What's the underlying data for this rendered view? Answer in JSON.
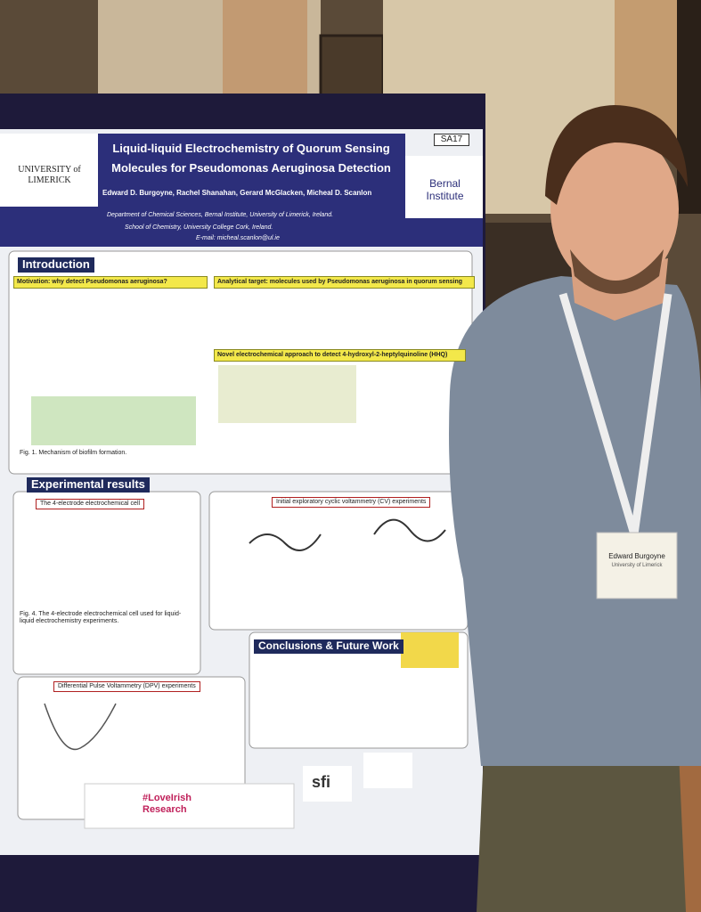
{
  "poster": {
    "board_number": "SA17",
    "university": "UNIVERSITY of LIMERICK",
    "institute": "Bernal Institute",
    "title_line_1": "Liquid-liquid Electrochemistry of Quorum Sensing",
    "title_line_2": "Molecules for Pseudomonas Aeruginosa Detection",
    "authors": "Edward D. Burgoyne, Rachel Shanahan, Gerard McGlacken, Micheal D. Scanlon",
    "affiliation_1": "Department of Chemical Sciences, Bernal Institute, University of Limerick, Ireland.",
    "affiliation_2": "School of Chemistry, University College Cork, Ireland.",
    "email": "E-mail: micheal.scanlon@ul.ie",
    "sections": {
      "introduction": "Introduction",
      "motivation": "Motivation: why detect Pseudomonas aeruginosa?",
      "analytical_target": "Analytical target: molecules used by Pseudomonas aeruginosa in quorum sensing",
      "novel_approach": "Novel electrochemical approach to detect 4-hydroxyl-2-heptylquinoline (HHQ)",
      "fig1": "Fig. 1. Mechanism of biofilm formation.",
      "experimental": "Experimental results",
      "cell": "The 4-electrode electrochemical cell",
      "cv": "Initial exploratory cyclic voltammetry (CV) experiments",
      "fig4": "Fig. 4. The 4-electrode electrochemical cell used for liquid-liquid electrochemistry experiments.",
      "dpv": "Differential Pulse Voltammetry (DPV) experiments",
      "conclusions": "Conclusions & Future Work",
      "sponsor_1": "#LoveIrish Research",
      "sponsor_2": "sfi"
    }
  },
  "badge": {
    "name": "Edward Burgoyne",
    "org": "University of Limerick"
  }
}
